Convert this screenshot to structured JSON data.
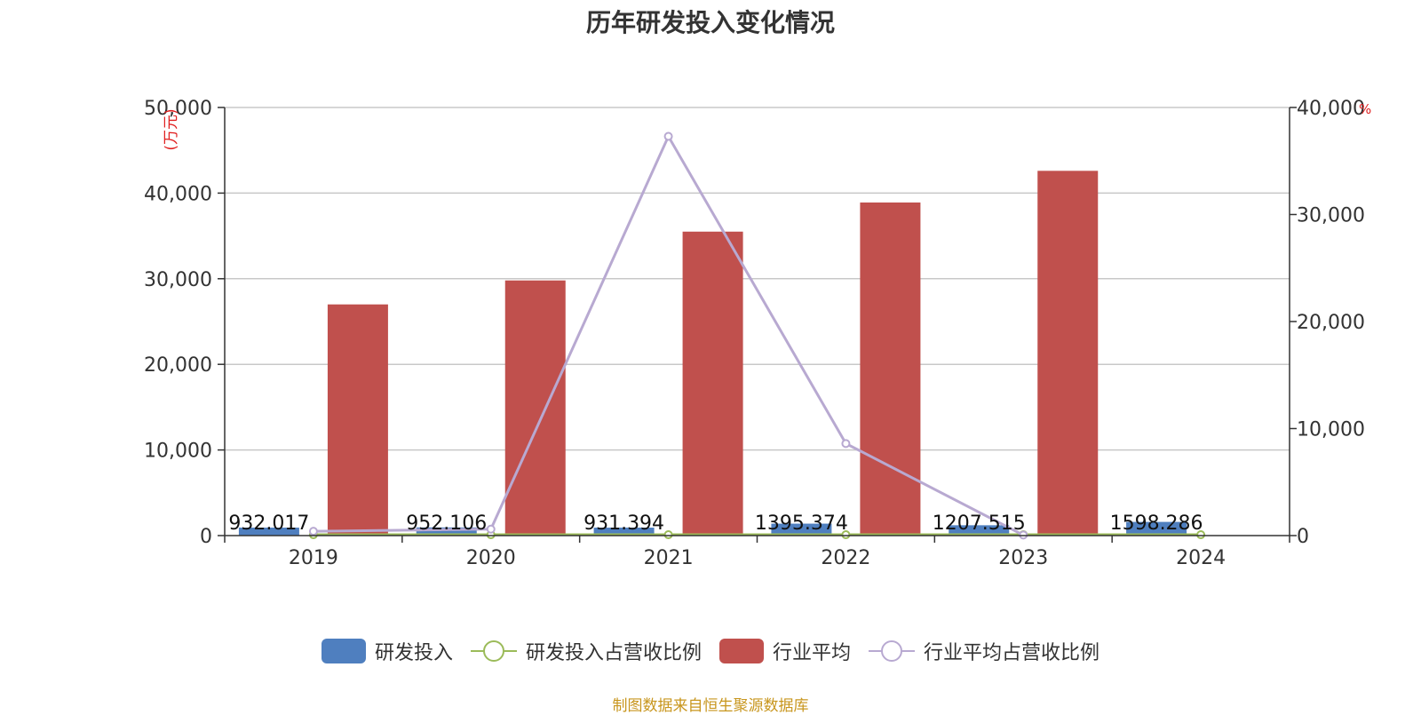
{
  "chart_data": {
    "type": "bar",
    "title": "历年研发投入变化情况",
    "categories": [
      "2019",
      "2020",
      "2021",
      "2022",
      "2023",
      "2024"
    ],
    "y_left": {
      "unit_label": "(万元)",
      "min": 0,
      "max": 50000,
      "ticks": [
        "0",
        "10,000",
        "20,000",
        "30,000",
        "40,000",
        "50,000"
      ]
    },
    "y_right": {
      "unit_label": "%",
      "min": 0,
      "max": 40000,
      "ticks": [
        "0",
        "10,000",
        "20,000",
        "30,000",
        "40,000"
      ]
    },
    "grid": true,
    "legend_position": "bottom",
    "series": [
      {
        "name": "研发投入",
        "kind": "bar",
        "axis": "left",
        "color": "#4f7fbf",
        "values": [
          932.017,
          952.106,
          931.394,
          1395.374,
          1207.515,
          1598.286
        ],
        "labels": [
          "932.017",
          "952.106",
          "931.394",
          "1395.374",
          "1207.515",
          "1598.286"
        ]
      },
      {
        "name": "研发投入占营收比例",
        "kind": "line",
        "axis": "right",
        "color": "#9bbb59",
        "values": [
          80,
          80,
          80,
          80,
          80,
          80
        ]
      },
      {
        "name": "行业平均",
        "kind": "bar",
        "axis": "left",
        "color": "#c0504d",
        "values": [
          27000,
          29800,
          35500,
          38900,
          42600,
          null
        ]
      },
      {
        "name": "行业平均占营收比例",
        "kind": "line",
        "axis": "right",
        "color": "#b8a9d1",
        "values": [
          400,
          600,
          37300,
          8600,
          50,
          null
        ]
      }
    ]
  },
  "source_note": "制图数据来自恒生聚源数据库"
}
